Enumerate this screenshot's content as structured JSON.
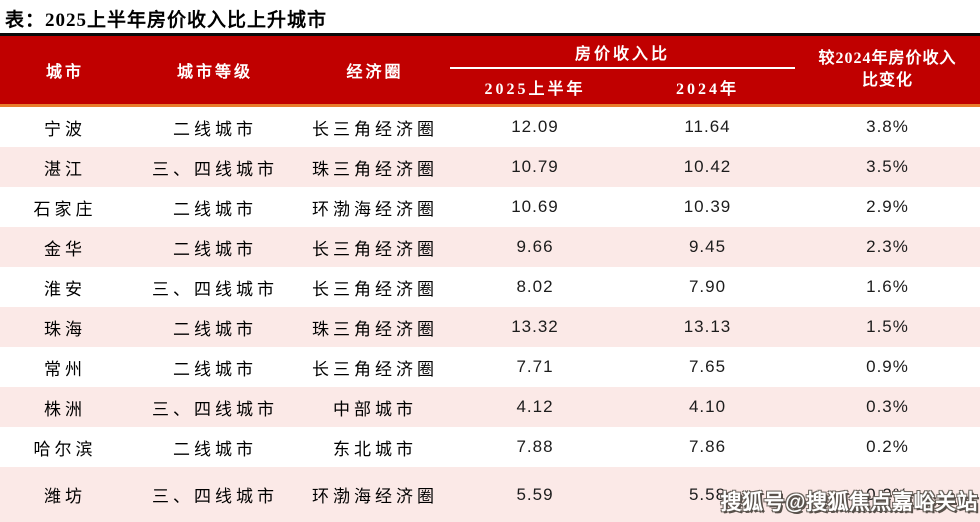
{
  "page": {
    "title": "表：2025上半年房价收入比上升城市",
    "watermark": "搜狐号@搜狐焦点嘉峪关站"
  },
  "colors": {
    "header_bg": "#C00000",
    "header_text": "#FFFFFF",
    "top_border": "#0A0A0A",
    "accent_line_orange": "#E87D2C",
    "group_underline": "#FFFFFF",
    "row_bg": "#FFFFFF",
    "row_alt_bg": "#FBE9E7",
    "body_text": "#000000"
  },
  "table": {
    "col_city": "城市",
    "col_tier": "城市等级",
    "col_circle": "经济圈",
    "group_label": "房价收入比",
    "sub_2025": "2025上半年",
    "sub_2024": "2024年",
    "col_change_full": "较2024年房价收入比变化",
    "col_change_line1": "较2024年房价收入",
    "col_change_line2": "比变化"
  },
  "chart_data": {
    "type": "table",
    "title": "表：2025上半年房价收入比上升城市",
    "columns": [
      "城市",
      "城市等级",
      "经济圈",
      "房价收入比 2025上半年",
      "房价收入比 2024年",
      "较2024年房价收入比变化"
    ],
    "rows": [
      [
        "宁波",
        "二线城市",
        "长三角经济圈",
        "12.09",
        "11.64",
        "3.8%"
      ],
      [
        "湛江",
        "三、四线城市",
        "珠三角经济圈",
        "10.79",
        "10.42",
        "3.5%"
      ],
      [
        "石家庄",
        "二线城市",
        "环渤海经济圈",
        "10.69",
        "10.39",
        "2.9%"
      ],
      [
        "金华",
        "二线城市",
        "长三角经济圈",
        "9.66",
        "9.45",
        "2.3%"
      ],
      [
        "淮安",
        "三、四线城市",
        "长三角经济圈",
        "8.02",
        "7.90",
        "1.6%"
      ],
      [
        "珠海",
        "二线城市",
        "珠三角经济圈",
        "13.32",
        "13.13",
        "1.5%"
      ],
      [
        "常州",
        "二线城市",
        "长三角经济圈",
        "7.71",
        "7.65",
        "0.9%"
      ],
      [
        "株洲",
        "三、四线城市",
        "中部城市",
        "4.12",
        "4.10",
        "0.3%"
      ],
      [
        "哈尔滨",
        "二线城市",
        "东北城市",
        "7.88",
        "7.86",
        "0.2%"
      ],
      [
        "潍坊",
        "三、四线城市",
        "环渤海经济圈",
        "5.59",
        "5.58",
        "0.2%"
      ]
    ]
  }
}
